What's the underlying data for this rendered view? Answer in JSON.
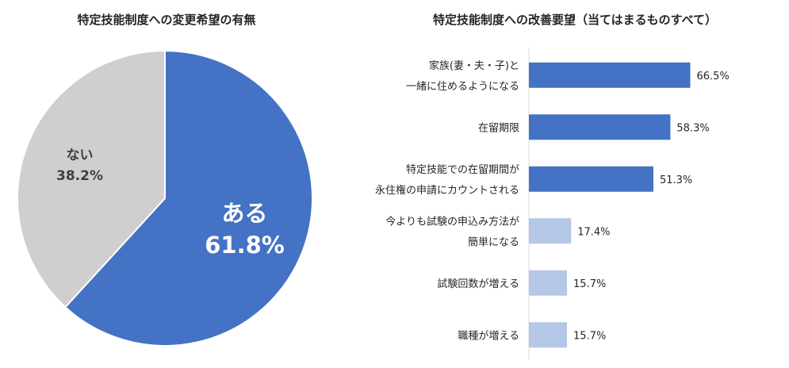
{
  "chart_data": [
    {
      "type": "pie",
      "title": "特定技能制度への変更希望の有無",
      "slices": [
        {
          "label": "ある",
          "value": 61.8,
          "value_label": "61.8%",
          "color": "#4472C4",
          "label_color": "#ffffff"
        },
        {
          "label": "ない",
          "value": 38.2,
          "value_label": "38.2%",
          "color": "#D0CECE",
          "label_color": "#404040"
        }
      ]
    },
    {
      "type": "bar",
      "orientation": "horizontal",
      "title": "特定技能制度への改善要望（当てはまるものすべて）",
      "categories": [
        [
          "家族(妻・夫・子)と",
          "一緒に住めるようになる"
        ],
        [
          "在留期限"
        ],
        [
          "特定技能での在留期間が",
          "永住権の申請にカウントされる"
        ],
        [
          "今よりも試験の申込み方法が",
          "簡単になる"
        ],
        [
          "試験回数が増える"
        ],
        [
          "職種が増える"
        ]
      ],
      "values": [
        66.5,
        58.3,
        51.3,
        17.4,
        15.7,
        15.7
      ],
      "value_labels": [
        "66.5%",
        "58.3%",
        "51.3%",
        "17.4%",
        "15.7%",
        "15.7%"
      ],
      "colors": [
        "#4472C4",
        "#4472C4",
        "#4472C4",
        "#B4C7E7",
        "#B4C7E7",
        "#B4C7E7"
      ],
      "xlim": [
        0,
        100
      ]
    }
  ]
}
